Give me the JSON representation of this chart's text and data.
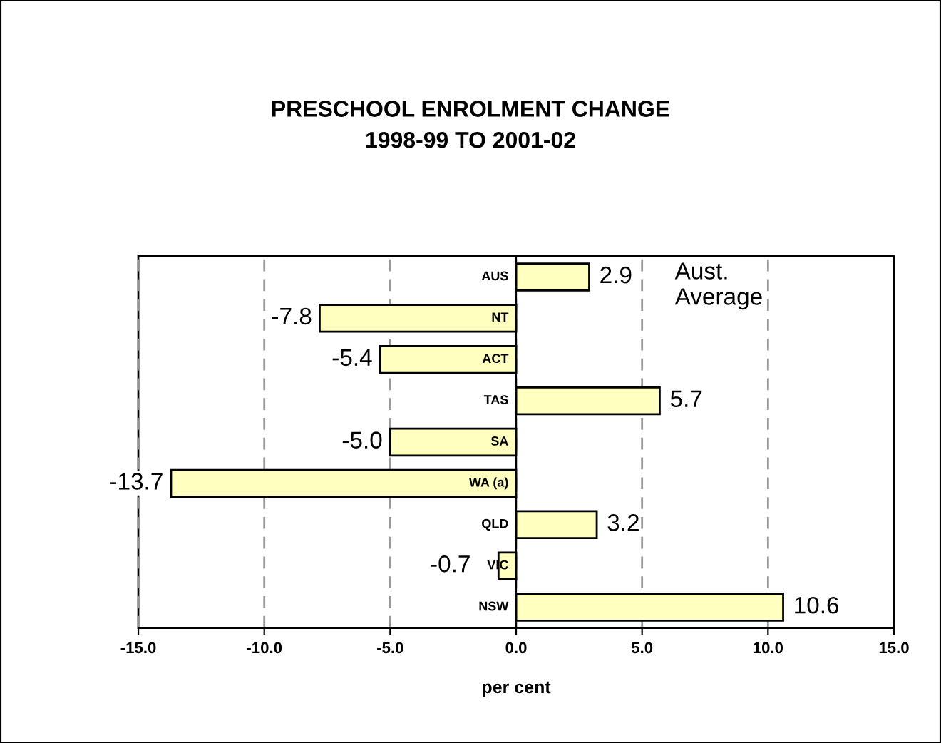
{
  "chart_data": {
    "type": "bar",
    "orientation": "horizontal",
    "title": "PRESCHOOL ENROLMENT CHANGE\n1998-99 TO 2001-02",
    "xlabel": "per cent",
    "categories": [
      "AUS",
      "NT",
      "ACT",
      "TAS",
      "SA",
      "WA (a)",
      "QLD",
      "VIC",
      "NSW"
    ],
    "values": [
      2.9,
      -7.8,
      -5.4,
      5.7,
      -5.0,
      -13.7,
      3.2,
      -0.7,
      10.6
    ],
    "value_labels": [
      "2.9",
      "-7.8",
      "-5.4",
      "5.7",
      "-5.0",
      "-13.7",
      "3.2",
      "-0.7",
      "10.6"
    ],
    "color": "#ffffc0",
    "xlim": [
      -15,
      15
    ],
    "xticks": [
      {
        "value": -15,
        "label": "-15.0"
      },
      {
        "value": -10,
        "label": "-10.0"
      },
      {
        "value": -5,
        "label": "-5.0"
      },
      {
        "value": 0,
        "label": "0.0"
      },
      {
        "value": 5,
        "label": "5.0"
      },
      {
        "value": 10,
        "label": "10.0"
      },
      {
        "value": 15,
        "label": "15.0"
      }
    ],
    "annotations": [
      "Aust.\nAverage"
    ],
    "grid": "x"
  }
}
